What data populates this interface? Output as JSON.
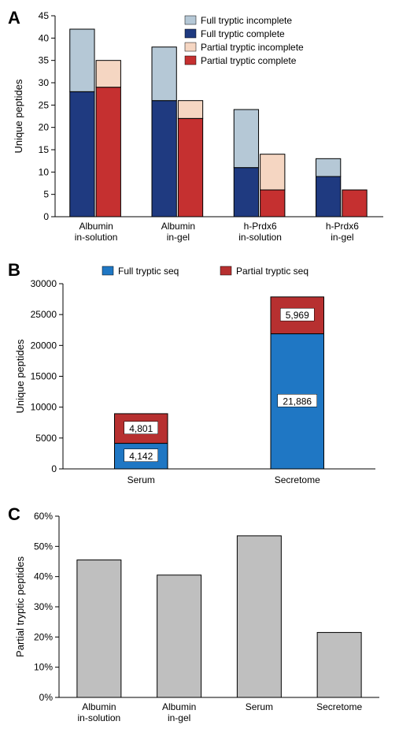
{
  "panelA": {
    "label": "A",
    "type": "stacked-bar-grouped",
    "ylabel": "Unique peptides",
    "ylim": [
      0,
      45
    ],
    "ytick_step": 5,
    "categories": [
      "Albumin\nin-solution",
      "Albumin\nin-gel",
      "h-Prdx6\nin-solution",
      "h-Prdx6\nin-gel"
    ],
    "legend": [
      {
        "label": "Full tryptic incomplete",
        "color": "#b5c8d6"
      },
      {
        "label": "Full tryptic complete",
        "color": "#1f3a80"
      },
      {
        "label": "Partial tryptic incomplete",
        "color": "#f5d6c2"
      },
      {
        "label": "Partial tryptic complete",
        "color": "#c53030"
      }
    ],
    "groups": [
      {
        "full_complete": 28,
        "full_incomplete": 14,
        "partial_complete": 29,
        "partial_incomplete": 6
      },
      {
        "full_complete": 26,
        "full_incomplete": 12,
        "partial_complete": 22,
        "partial_incomplete": 4
      },
      {
        "full_complete": 11,
        "full_incomplete": 13,
        "partial_complete": 6,
        "partial_incomplete": 8
      },
      {
        "full_complete": 9,
        "full_incomplete": 4,
        "partial_complete": 6,
        "partial_incomplete": 0
      }
    ],
    "colors": {
      "full_complete": "#1f3a80",
      "full_incomplete": "#b5c8d6",
      "partial_complete": "#c53030",
      "partial_incomplete": "#f5d6c2"
    }
  },
  "panelB": {
    "label": "B",
    "type": "stacked-bar",
    "ylabel": "Unique peptides",
    "ylim": [
      0,
      30000
    ],
    "ytick_step": 5000,
    "categories": [
      "Serum",
      "Secretome"
    ],
    "legend": [
      {
        "label": "Full tryptic seq",
        "color": "#1f77c4"
      },
      {
        "label": "Partial tryptic seq",
        "color": "#b73030"
      }
    ],
    "bars": [
      {
        "full": 4142,
        "partial": 4801,
        "full_label": "4,142",
        "partial_label": "4,801"
      },
      {
        "full": 21886,
        "partial": 5969,
        "full_label": "21,886",
        "partial_label": "5,969"
      }
    ],
    "colors": {
      "full": "#1f77c4",
      "partial": "#b73030"
    }
  },
  "panelC": {
    "label": "C",
    "type": "bar",
    "ylabel": "Partial tryptic peptides",
    "ylim": [
      0,
      60
    ],
    "ytick_step": 10,
    "y_suffix": "%",
    "categories": [
      "Albumin\nin-solution",
      "Albumin\nin-gel",
      "Serum",
      "Secretome"
    ],
    "values": [
      45.5,
      40.5,
      53.5,
      21.5
    ],
    "bar_color": "#bfbfbf"
  }
}
